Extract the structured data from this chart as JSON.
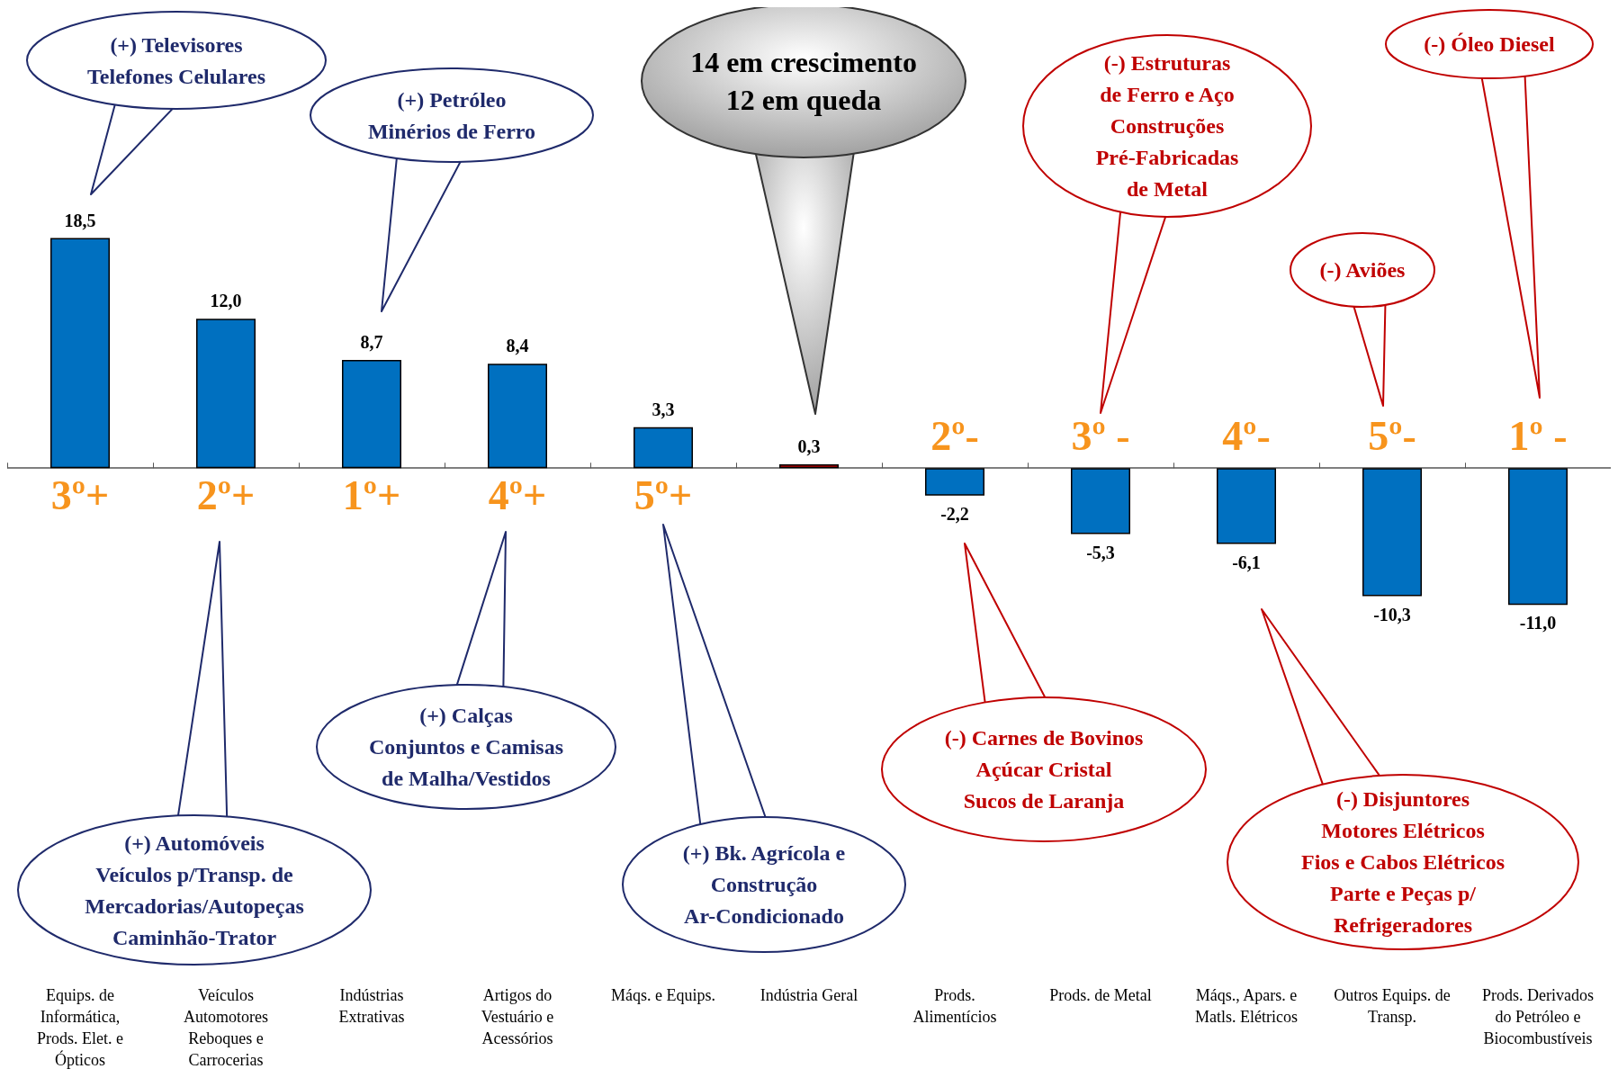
{
  "chart_data": {
    "type": "bar",
    "categories": [
      "Equips. de\nInformática,\nProds. Elet. e\nÓpticos",
      "Veículos\nAutomotores\nReboques e\nCarrocerias",
      "Indústrias\nExtrativas",
      "Artigos do\nVestuário e\nAcessórios",
      "Máqs. e Equips.",
      "Indústria Geral",
      "Prods.\nAlimentícios",
      "Prods. de Metal",
      "Máqs., Apars. e\nMatls. Elétricos",
      "Outros Equips. de\nTransp.",
      "Prods. Derivados\ndo Petróleo e\nBiocombustíveis"
    ],
    "values": [
      18.5,
      12.0,
      8.7,
      8.4,
      3.3,
      0.3,
      -2.2,
      -5.3,
      -6.1,
      -10.3,
      -11.0
    ],
    "value_labels": [
      "18,5",
      "12,0",
      "8,7",
      "8,4",
      "3,3",
      "0,3",
      "-2,2",
      "-5,3",
      "-6,1",
      "-10,3",
      "-11,0"
    ],
    "colors": [
      "#0070c0",
      "#0070c0",
      "#0070c0",
      "#0070c0",
      "#0070c0",
      "#c00000",
      "#0070c0",
      "#0070c0",
      "#0070c0",
      "#0070c0",
      "#0070c0"
    ],
    "annotations": [
      "14 em crescimento\n12  em queda",
      "3º+",
      "2º+",
      "1º+",
      "4º+",
      "5º+",
      "2º-",
      "3º -",
      "4º-",
      "5º-",
      "1º -",
      "(+) Televisores\nTelefones Celulares",
      "(+) Petróleo\nMinérios de Ferro",
      "(+) Automóveis\nVeículos p/Transp. de\nMercadorias/Autopeças\nCaminhão-Trator",
      "(+) Calças\nConjuntos e Camisas\nde Malha/Vestidos",
      "(+) Bk. Agrícola e\nConstrução\nAr-Condicionado",
      "(-) Carnes de Bovinos\nAçúcar Cristal\nSucos de Laranja",
      "(-) Estruturas\nde Ferro e Aço\nConstruções\nPré-Fabricadas\nde Metal",
      "(-) Disjuntores\nMotores Elétricos\nFios e Cabos Elétricos\nParte e Peças p/\nRefrigeradores",
      "(-) Aviões",
      "(-) Óleo Diesel"
    ]
  }
}
